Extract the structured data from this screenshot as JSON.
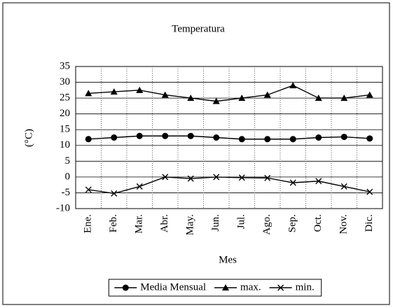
{
  "chart_data": {
    "type": "line",
    "title": "Temperatura",
    "x_label": "Mes",
    "y_label": "(°C)",
    "categories": [
      "Ene.",
      "Feb.",
      "Mar.",
      "Abr.",
      "May.",
      "Jun.",
      "Jul.",
      "Ago.",
      "Sep.",
      "Oct.",
      "Nov.",
      "Dic."
    ],
    "series": [
      {
        "name": "Media Mensual",
        "color": "#000000",
        "marker": "circle",
        "values": [
          12,
          12.5,
          13,
          13,
          13,
          12.5,
          12,
          12,
          12,
          12.5,
          12.7,
          12.2
        ]
      },
      {
        "name": "max.",
        "color": "#000000",
        "marker": "triangle",
        "values": [
          26.5,
          27,
          27.5,
          26,
          25,
          24,
          25,
          26,
          29,
          25,
          25,
          26
        ]
      },
      {
        "name": "min.",
        "color": "#000000",
        "marker": "x",
        "values": [
          -4,
          -5.2,
          -3,
          0,
          -0.5,
          0,
          -0.2,
          -0.3,
          -1.8,
          -1.3,
          -3,
          -4.7
        ]
      }
    ],
    "ylim": [
      -10,
      35
    ],
    "yticks": [
      -10,
      -5,
      0,
      5,
      10,
      15,
      20,
      25,
      30,
      35
    ],
    "grid": true,
    "legend": "bottom"
  }
}
